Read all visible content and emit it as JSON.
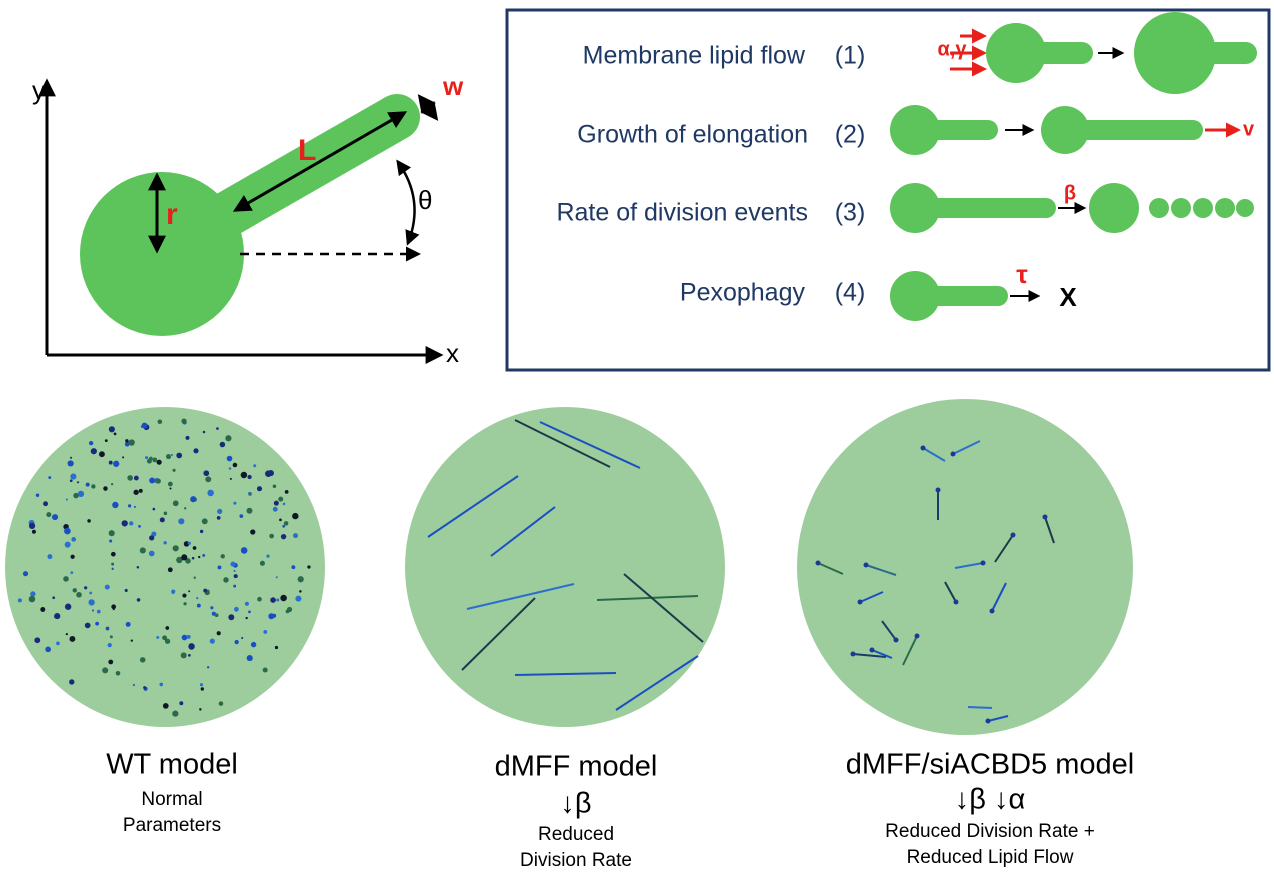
{
  "schematic": {
    "axis_y": "y",
    "axis_x": "x",
    "width": "w",
    "length": "L",
    "radius": "r",
    "angle": "θ"
  },
  "processes": [
    {
      "label": "Membrane lipid flow",
      "number": "(1)",
      "parameter": "α,γ"
    },
    {
      "label": "Growth of elongation",
      "number": "(2)",
      "parameter": "v"
    },
    {
      "label": "Rate of division events",
      "number": "(3)",
      "parameter": "β"
    },
    {
      "label": "Pexophagy",
      "number": "(4)",
      "parameter": "τ",
      "result": "X"
    }
  ],
  "models": [
    {
      "title": "WT model",
      "lines": [
        "Normal",
        "Parameters"
      ]
    },
    {
      "title": "dMFF model",
      "symbol": "↓β",
      "lines": [
        "Reduced",
        "Division Rate"
      ]
    },
    {
      "title": "dMFF/siACBD5 model",
      "symbol": "↓β ↓α",
      "lines": [
        "Reduced  Division Rate +",
        "Reduced Lipid Flow"
      ]
    }
  ]
}
